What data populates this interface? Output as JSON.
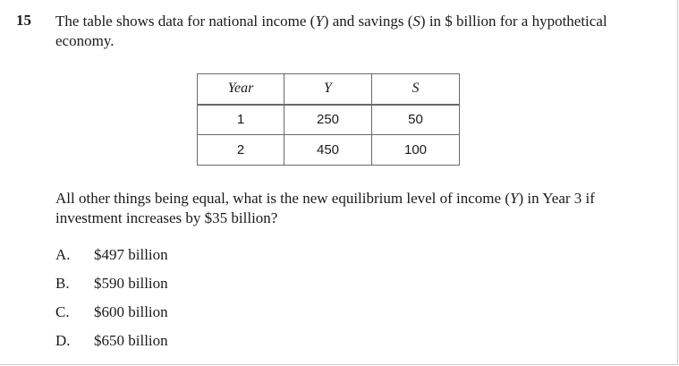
{
  "question_number": "15",
  "stem": {
    "p1": "The table shows data for national income (",
    "y_var": "Y",
    "p2": ") and savings (",
    "s_var": "S",
    "p3": ") in $ billion for a hypothetical economy."
  },
  "table": {
    "headers": [
      "Year",
      "Y",
      "S"
    ],
    "rows": [
      [
        "1",
        "250",
        "50"
      ],
      [
        "2",
        "450",
        "100"
      ]
    ]
  },
  "question": {
    "p1": "All other things being equal, what is the new equilibrium level of income (",
    "y_var": "Y",
    "p2": ") in Year 3 if investment increases by $35 billion?"
  },
  "options": [
    {
      "letter": "A.",
      "text": "$497 billion"
    },
    {
      "letter": "B.",
      "text": "$590 billion"
    },
    {
      "letter": "C.",
      "text": "$600 billion"
    },
    {
      "letter": "D.",
      "text": "$650 billion"
    }
  ]
}
